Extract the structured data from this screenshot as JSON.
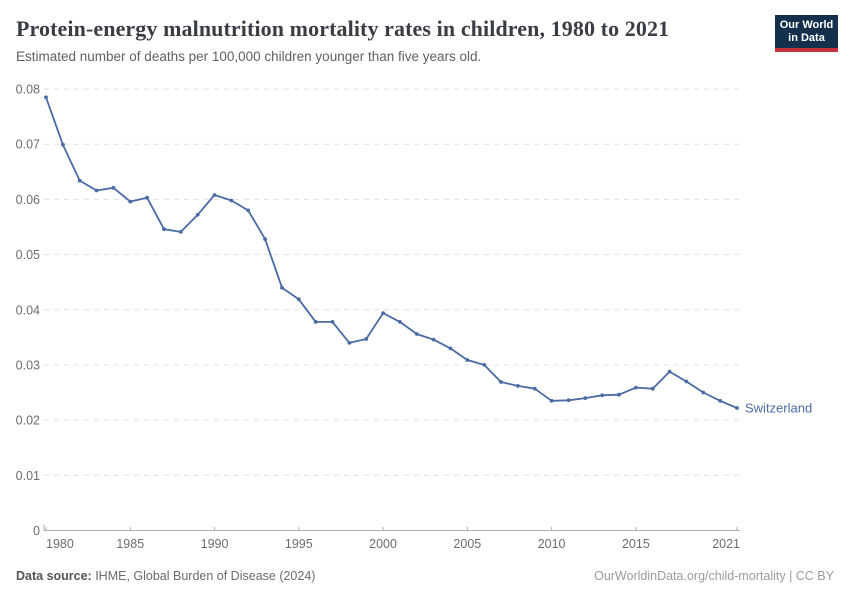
{
  "header": {
    "title": "Protein-energy malnutrition mortality rates in children, 1980 to 2021",
    "subtitle": "Estimated number of deaths per 100,000 children younger than five years old.",
    "logo": {
      "line1": "Our World",
      "line2": "in Data"
    }
  },
  "footer": {
    "source_label": "Data source:",
    "source_value": " IHME, Global Burden of Disease (2024)",
    "attribution": "OurWorldinData.org/child-mortality | CC BY"
  },
  "colors": {
    "line": "#4a6ba3",
    "entity_label": "#4a6ba3",
    "grid": "#e0e0e0",
    "axis": "#aeaeae",
    "tick_text": "#6d6d6d",
    "logo_bg": "#14304d",
    "logo_accent": "#c9303a",
    "title_text": "#3a3d43",
    "subtitle_text": "#5f5f66"
  },
  "chart_data": {
    "type": "line",
    "title": "Protein-energy malnutrition mortality rates in children, 1980 to 2021",
    "subtitle": "Estimated number of deaths per 100,000 children younger than five years old.",
    "xlabel": "",
    "ylabel": "",
    "xlim": [
      1980,
      2021
    ],
    "ylim": [
      0,
      0.08
    ],
    "grid": "horizontal-dashed",
    "legend_position": "end-of-line-label",
    "x_tick_years": [
      1980,
      1985,
      1990,
      1995,
      2000,
      2005,
      2010,
      2015,
      2021
    ],
    "x_tick_labels": [
      "1980",
      "1985",
      "1990",
      "1995",
      "2000",
      "2005",
      "2010",
      "2015",
      "2021"
    ],
    "y_ticks": [
      0,
      0.01,
      0.02,
      0.03,
      0.04,
      0.05,
      0.06,
      0.07,
      0.08
    ],
    "y_tick_labels": [
      "0",
      "0.01",
      "0.02",
      "0.03",
      "0.04",
      "0.05",
      "0.06",
      "0.07",
      "0.08"
    ],
    "series": [
      {
        "name": "Switzerland",
        "x": [
          1980,
          1981,
          1982,
          1983,
          1984,
          1985,
          1986,
          1987,
          1988,
          1989,
          1990,
          1991,
          1992,
          1993,
          1994,
          1995,
          1996,
          1997,
          1998,
          1999,
          2000,
          2001,
          2002,
          2003,
          2004,
          2005,
          2006,
          2007,
          2008,
          2009,
          2010,
          2011,
          2012,
          2013,
          2014,
          2015,
          2016,
          2017,
          2018,
          2019,
          2020,
          2021
        ],
        "values": [
          0.0785,
          0.0699,
          0.0634,
          0.0616,
          0.0621,
          0.0596,
          0.0603,
          0.0546,
          0.0541,
          0.0572,
          0.0608,
          0.0598,
          0.058,
          0.0528,
          0.044,
          0.0419,
          0.0378,
          0.0378,
          0.034,
          0.0347,
          0.0394,
          0.0378,
          0.0356,
          0.0346,
          0.033,
          0.0309,
          0.03,
          0.0269,
          0.0262,
          0.0257,
          0.0235,
          0.0236,
          0.024,
          0.0245,
          0.0246,
          0.0259,
          0.0257,
          0.0288,
          0.027,
          0.025,
          0.0235,
          0.0222
        ]
      }
    ]
  }
}
